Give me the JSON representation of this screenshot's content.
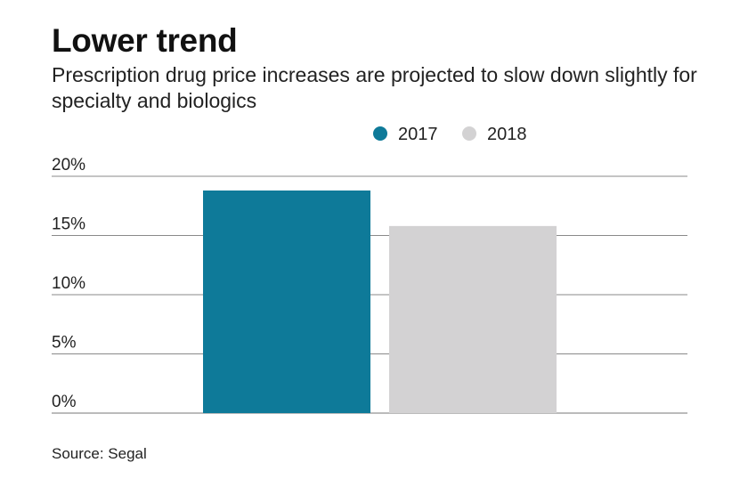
{
  "header": {
    "title": "Lower trend",
    "subtitle": "Prescription drug price increases are projected to slow down slightly for specialty and biologics"
  },
  "footer": {
    "source": "Source: Segal"
  },
  "chart_data": {
    "type": "bar",
    "title": "Lower trend",
    "subtitle": "Prescription drug price increases are projected to slow down slightly for specialty and biologics",
    "categories": [
      ""
    ],
    "series": [
      {
        "name": "2017",
        "values": [
          18.8
        ],
        "color": "#0e7a99"
      },
      {
        "name": "2018",
        "values": [
          15.8
        ],
        "color": "#d3d2d3"
      }
    ],
    "ylim": [
      0,
      20
    ],
    "yticks": [
      0,
      5,
      10,
      15,
      20
    ],
    "ytick_labels": [
      "0%",
      "5%",
      "10%",
      "15%",
      "20%"
    ],
    "xlabel": "",
    "ylabel": "",
    "grid": true,
    "legend": "top-right"
  }
}
